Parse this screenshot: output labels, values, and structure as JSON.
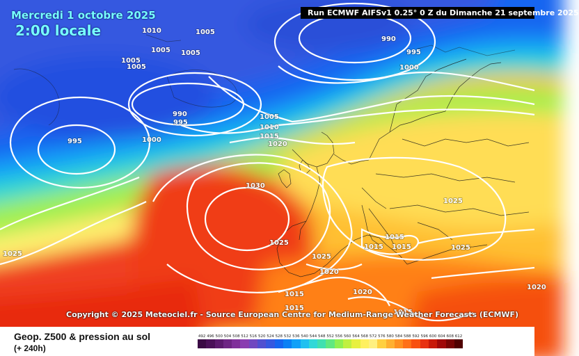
{
  "header": {
    "date": "Mercredi 1 octobre 2025",
    "local_time": "2:00 locale",
    "run_info": "Run ECMWF AIFSv1 0.25° 0 Z du Dimanche 21 septembre 2025"
  },
  "footer": {
    "copyright": "Copyright © 2025 Meteociel.fr - Source European Centre for Medium-Range Weather Forecasts (ECMWF)",
    "parameter": "Geop. Z500 & pression au sol",
    "lead_time": "(+ 240h)"
  },
  "map": {
    "field": "Geopotential height 500 hPa",
    "overlay": "Mean sea level pressure isobars (white)",
    "isobar_labels": [
      "1010",
      "1005",
      "1005",
      "1005",
      "1005",
      "1005",
      "990",
      "995",
      "1000",
      "995",
      "990",
      "995",
      "1000",
      "1005",
      "1010",
      "1015",
      "1020",
      "1030",
      "1025",
      "1025",
      "1025",
      "1015",
      "1015",
      "1015",
      "1025",
      "1020",
      "1020",
      "1015",
      "1015",
      "1015",
      "1025",
      "1020"
    ]
  },
  "scale": {
    "labels": [
      "492",
      "496",
      "500",
      "504",
      "508",
      "512",
      "516",
      "520",
      "524",
      "528",
      "532",
      "536",
      "540",
      "544",
      "548",
      "552",
      "556",
      "560",
      "564",
      "568",
      "572",
      "576",
      "580",
      "584",
      "588",
      "592",
      "596",
      "600",
      "604",
      "608",
      "612"
    ],
    "colors": [
      "#3a0a44",
      "#4a1058",
      "#5c1a6e",
      "#6e2584",
      "#80309a",
      "#8a3db0",
      "#7048c0",
      "#5050d0",
      "#3558e0",
      "#1565f0",
      "#0a80f5",
      "#10a0f8",
      "#20c0f0",
      "#30d8d8",
      "#40e0b0",
      "#60e880",
      "#90f050",
      "#c0f040",
      "#e8f040",
      "#fff060",
      "#fff080",
      "#ffd040",
      "#ffb030",
      "#ff9020",
      "#ff7018",
      "#f85010",
      "#e83010",
      "#c81808",
      "#a00808",
      "#780404",
      "#500000"
    ]
  }
}
